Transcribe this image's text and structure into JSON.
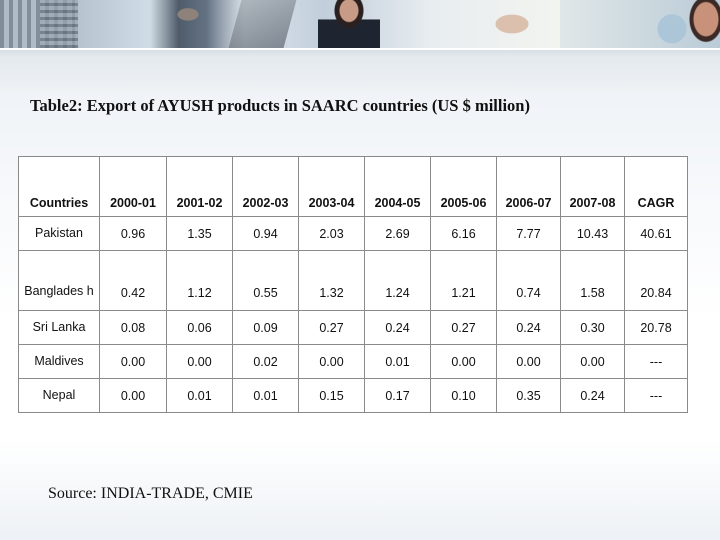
{
  "title": "Table2: Export of AYUSH products in SAARC countries (US $ million)",
  "table": {
    "headers": [
      "Countries",
      "2000-01",
      "2001-02",
      "2002-03",
      "2003-04",
      "2004-05",
      "2005-06",
      "2006-07",
      "2007-08",
      "CAGR"
    ],
    "rows": [
      [
        "Pakistan",
        "0.96",
        "1.35",
        "0.94",
        "2.03",
        "2.69",
        "6.16",
        "7.77",
        "10.43",
        "40.61"
      ],
      [
        "Banglades h",
        "0.42",
        "1.12",
        "0.55",
        "1.32",
        "1.24",
        "1.21",
        "0.74",
        "1.58",
        "20.84"
      ],
      [
        "Sri Lanka",
        "0.08",
        "0.06",
        "0.09",
        "0.27",
        "0.24",
        "0.27",
        "0.24",
        "0.30",
        "20.78"
      ],
      [
        "Maldives",
        "0.00",
        "0.00",
        "0.02",
        "0.00",
        "0.01",
        "0.00",
        "0.00",
        "0.00",
        "---"
      ],
      [
        "Nepal",
        "0.00",
        "0.01",
        "0.01",
        "0.15",
        "0.17",
        "0.10",
        "0.35",
        "0.24",
        "---"
      ]
    ]
  },
  "source": "Source: INDIA-TRADE, CMIE"
}
